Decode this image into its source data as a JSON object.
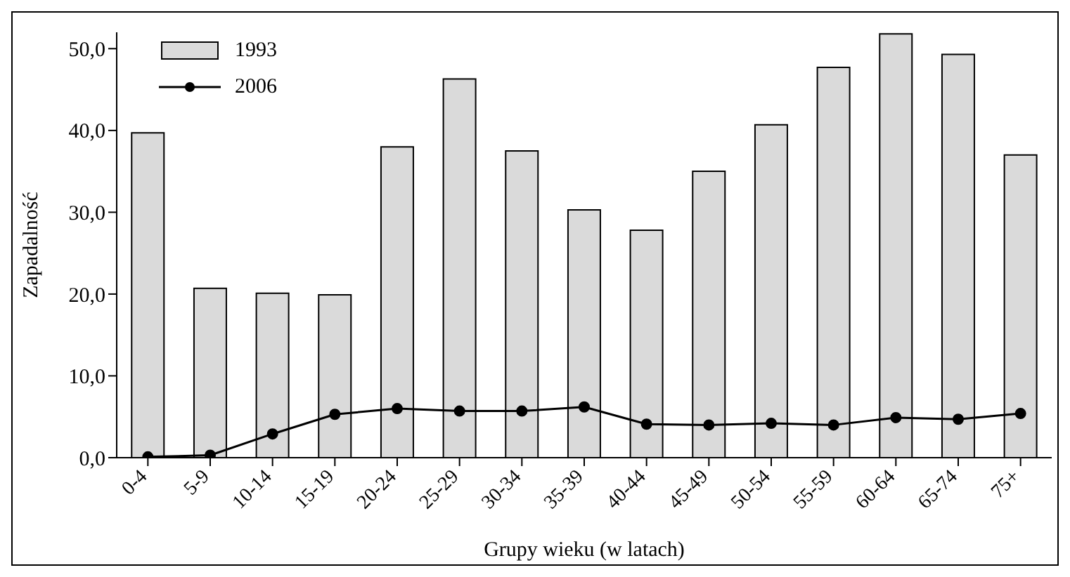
{
  "chart_data": {
    "type": "bar",
    "xlabel": "Grupy wieku (w latach)",
    "ylabel": "Zapadalność",
    "categories": [
      "0-4",
      "5-9",
      "10-14",
      "15-19",
      "20-24",
      "25-29",
      "30-34",
      "35-39",
      "40-44",
      "45-49",
      "50-54",
      "55-59",
      "60-64",
      "65-74",
      "75+"
    ],
    "series": [
      {
        "name": "1993",
        "color": "#dadada",
        "values": [
          39.7,
          20.7,
          20.1,
          19.9,
          38.0,
          46.3,
          37.5,
          30.3,
          27.8,
          35.0,
          40.7,
          47.7,
          51.8,
          49.3,
          37.0
        ]
      },
      {
        "name": "2006",
        "type": "line",
        "color": "#000000",
        "values": [
          0.1,
          0.3,
          2.9,
          5.3,
          6.0,
          5.7,
          5.7,
          6.2,
          4.1,
          4.0,
          4.2,
          4.0,
          4.9,
          4.7,
          5.4
        ]
      }
    ],
    "ylim": [
      0,
      52
    ],
    "yticks": [
      {
        "value": 0,
        "label": "0,0"
      },
      {
        "value": 10,
        "label": "10,0"
      },
      {
        "value": 20,
        "label": "20,0"
      },
      {
        "value": 30,
        "label": "30,0"
      },
      {
        "value": 40,
        "label": "40,0"
      },
      {
        "value": 50,
        "label": "50,0"
      }
    ],
    "grid": false,
    "legend": "top left",
    "marker": "circle",
    "line_style": "solid"
  }
}
